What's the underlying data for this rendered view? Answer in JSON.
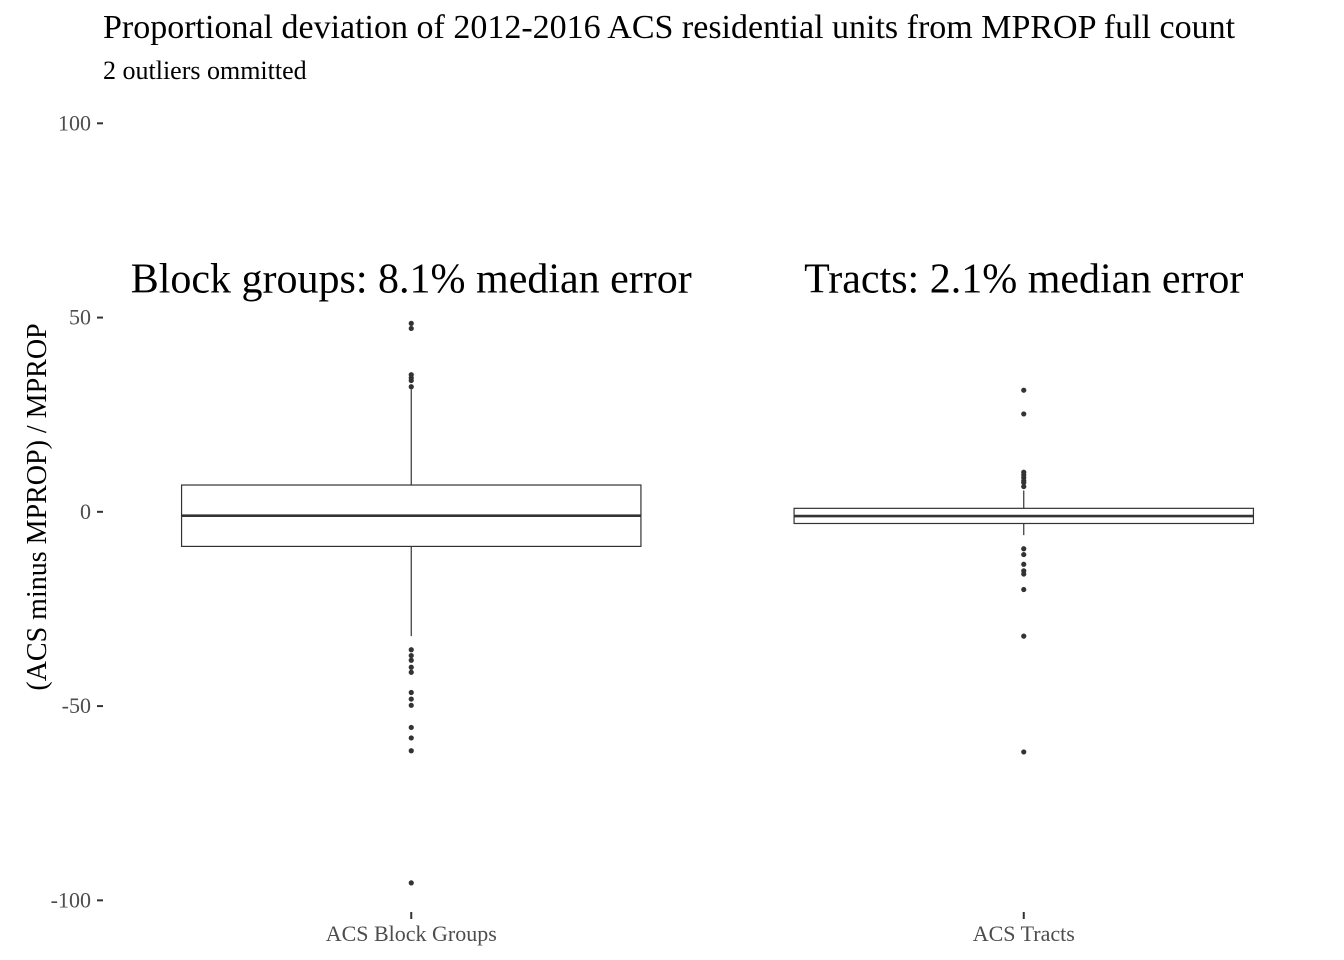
{
  "chart_data": {
    "type": "boxplot",
    "title": "Proportional deviation of 2012-2016 ACS residential units from MPROP full count",
    "subtitle": "2 outliers ommitted",
    "xlabel": "",
    "ylabel": "(ACS minus MPROP) / MPROP",
    "ylim": [
      -103,
      106
    ],
    "yticks": [
      100,
      50,
      0,
      -50,
      -100
    ],
    "ytick_labels": [
      "100",
      "50",
      "0",
      "-50",
      "-100"
    ],
    "grid": false,
    "categories": [
      "ACS Block Groups",
      "ACS Tracts"
    ],
    "boxes": [
      {
        "category": "ACS Block Groups",
        "q1": -8.9,
        "median": -1.0,
        "q3": 6.9,
        "whisker_low": -32.0,
        "whisker_high": 31.5,
        "outliers": [
          48.5,
          47.2,
          35.3,
          34.5,
          33.8,
          32.2,
          -35.5,
          -37.0,
          -38.2,
          -40.0,
          -41.3,
          -46.5,
          -48.2,
          -49.8,
          -55.5,
          -58.2,
          -61.5,
          -95.5
        ]
      },
      {
        "category": "ACS Tracts",
        "q1": -3.0,
        "median": -1.1,
        "q3": 0.9,
        "whisker_low": -6.0,
        "whisker_high": 5.5,
        "outliers": [
          31.3,
          25.2,
          10.2,
          9.5,
          8.8,
          8.0,
          7.5,
          6.5,
          -9.5,
          -11.0,
          -13.5,
          -15.2,
          -16.0,
          -20.0,
          -32.0,
          -61.8
        ]
      }
    ],
    "annotations": [
      {
        "text": "Block groups: 8.1% median error",
        "category": "ACS Block Groups",
        "y": 60
      },
      {
        "text": "Tracts: 2.1% median error",
        "category": "ACS Tracts",
        "y": 60
      }
    ]
  }
}
